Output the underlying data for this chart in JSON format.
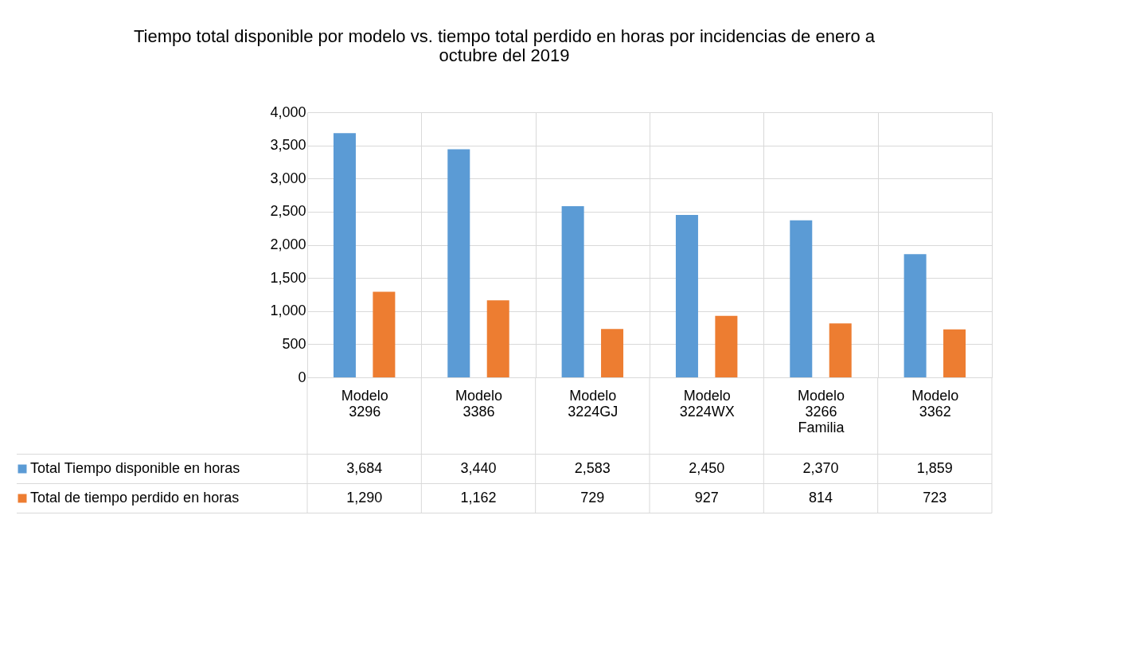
{
  "chart_data": {
    "type": "bar",
    "title": [
      "Tiempo total disponible por modelo vs. tiempo total perdido en horas por incidencias de enero a",
      "octubre del 2019"
    ],
    "categories": [
      "Modelo 3296",
      "Modelo 3386",
      "Modelo 3224GJ",
      "Modelo 3224WX",
      "Modelo 3266 Familia",
      "Modelo 3362"
    ],
    "series": [
      {
        "name": "Total Tiempo disponible en horas",
        "color": "#5b9bd5",
        "values": [
          3684,
          3440,
          2583,
          2450,
          2370,
          1859
        ],
        "value_labels": [
          "3,684",
          "3,440",
          "2,583",
          "2,450",
          "2,370",
          "1,859"
        ]
      },
      {
        "name": "Total de tiempo perdido en horas",
        "color": "#ed7d31",
        "values": [
          1290,
          1162,
          729,
          927,
          814,
          723
        ],
        "value_labels": [
          "1,290",
          "1,162",
          "729",
          "927",
          "814",
          "723"
        ]
      }
    ],
    "ylim": [
      0,
      4000
    ],
    "yticks": [
      {
        "value": 0,
        "label": "0"
      },
      {
        "value": 500,
        "label": "500"
      },
      {
        "value": 1000,
        "label": "1,000"
      },
      {
        "value": 1500,
        "label": "1,500"
      },
      {
        "value": 2000,
        "label": "2,000"
      },
      {
        "value": 2500,
        "label": "2,500"
      },
      {
        "value": 3000,
        "label": "3,000"
      },
      {
        "value": 3500,
        "label": "3,500"
      },
      {
        "value": 4000,
        "label": "4,000"
      }
    ],
    "grid": true,
    "legend": "bottom left"
  }
}
